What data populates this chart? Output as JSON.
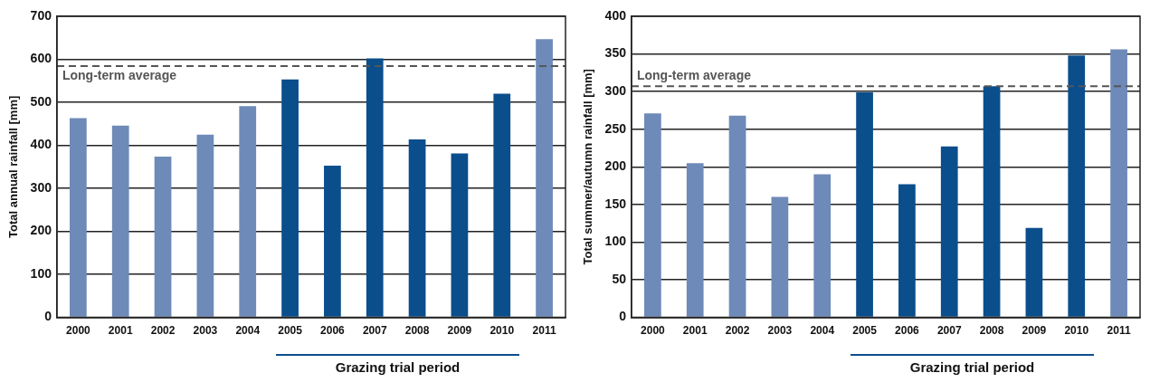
{
  "chart_data": [
    {
      "type": "bar",
      "ylabel": "Total annual rainfall [mm]",
      "categories": [
        "2000",
        "2001",
        "2002",
        "2003",
        "2004",
        "2005",
        "2006",
        "2007",
        "2008",
        "2009",
        "2010",
        "2011"
      ],
      "values": [
        463,
        446,
        374,
        425,
        491,
        553,
        353,
        602,
        414,
        381,
        520,
        647
      ],
      "colors": [
        "#6e8ab8",
        "#6e8ab8",
        "#6e8ab8",
        "#6e8ab8",
        "#6e8ab8",
        "#0a4e8c",
        "#0a4e8c",
        "#0a4e8c",
        "#0a4e8c",
        "#0a4e8c",
        "#0a4e8c",
        "#6e8ab8"
      ],
      "ylim": [
        0,
        700
      ],
      "yticks": [
        0,
        100,
        200,
        300,
        400,
        500,
        600,
        700
      ],
      "grid": "y",
      "ref_lines": [
        {
          "axis": "y",
          "value": 584,
          "label": "Long-term average",
          "color": "#555555",
          "line_style": "dashed"
        }
      ],
      "annotations": [
        "Grazing trial period"
      ]
    },
    {
      "type": "bar",
      "ylabel": "Total summer/autumn rainfall [mm]",
      "categories": [
        "2000",
        "2001",
        "2002",
        "2003",
        "2004",
        "2005",
        "2006",
        "2007",
        "2008",
        "2009",
        "2010",
        "2011"
      ],
      "values": [
        271,
        205,
        268,
        160,
        190,
        299,
        177,
        227,
        307,
        119,
        348,
        356
      ],
      "colors": [
        "#6e8ab8",
        "#6e8ab8",
        "#6e8ab8",
        "#6e8ab8",
        "#6e8ab8",
        "#0a4e8c",
        "#0a4e8c",
        "#0a4e8c",
        "#0a4e8c",
        "#0a4e8c",
        "#0a4e8c",
        "#6e8ab8"
      ],
      "ylim": [
        0,
        400
      ],
      "yticks": [
        0,
        50,
        100,
        150,
        200,
        250,
        300,
        350,
        400
      ],
      "grid": "y",
      "ref_lines": [
        {
          "axis": "y",
          "value": 307,
          "label": "Long-term average",
          "color": "#555555",
          "line_style": "dashed"
        }
      ],
      "annotations": [
        "Grazing trial period"
      ]
    }
  ]
}
